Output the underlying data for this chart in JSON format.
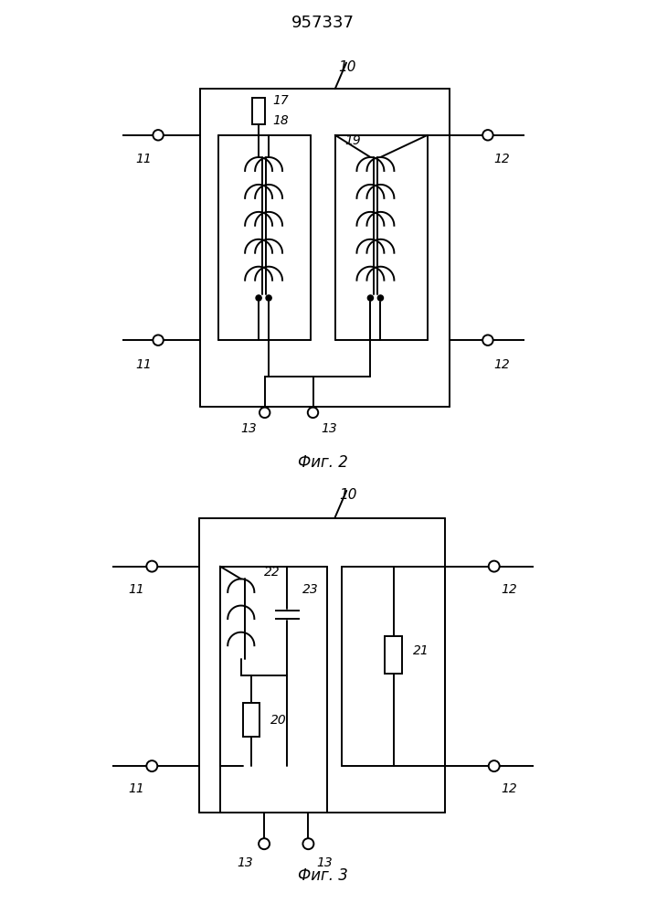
{
  "title": "957337",
  "fig1_label": "Фиг. 2",
  "fig2_label": "Фиг. 3",
  "lw": 1.4
}
